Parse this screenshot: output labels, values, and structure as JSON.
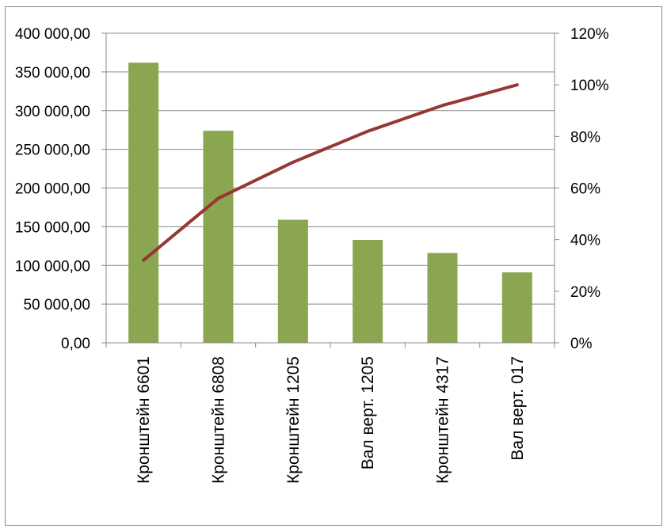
{
  "chart_data": {
    "type": "bar",
    "title": "",
    "xlabel": "",
    "ylabel": "",
    "categories": [
      "Кронштейн 6601",
      "Кронштейн 6808",
      "Кронштейн 1205",
      "Вал верт. 1205",
      "Кронштейн 4317",
      "Вал верт. 017"
    ],
    "series": [
      {
        "type": "bar",
        "axis": "left",
        "color": "#8aa651",
        "values": [
          362000,
          274000,
          159000,
          133000,
          116000,
          91000
        ]
      },
      {
        "type": "line",
        "axis": "right",
        "color": "#953735",
        "values": [
          32,
          56,
          70,
          82,
          92,
          100
        ]
      }
    ],
    "ylim": [
      0,
      400000
    ],
    "yticks": [
      "0,00",
      "50 000,00",
      "100 000,00",
      "150 000,00",
      "200 000,00",
      "250 000,00",
      "300 000,00",
      "350 000,00",
      "400 000,00"
    ],
    "y2lim": [
      0,
      120
    ],
    "y2ticks": [
      "0%",
      "20%",
      "40%",
      "60%",
      "80%",
      "100%",
      "120%"
    ],
    "grid": true,
    "legend": "none"
  }
}
